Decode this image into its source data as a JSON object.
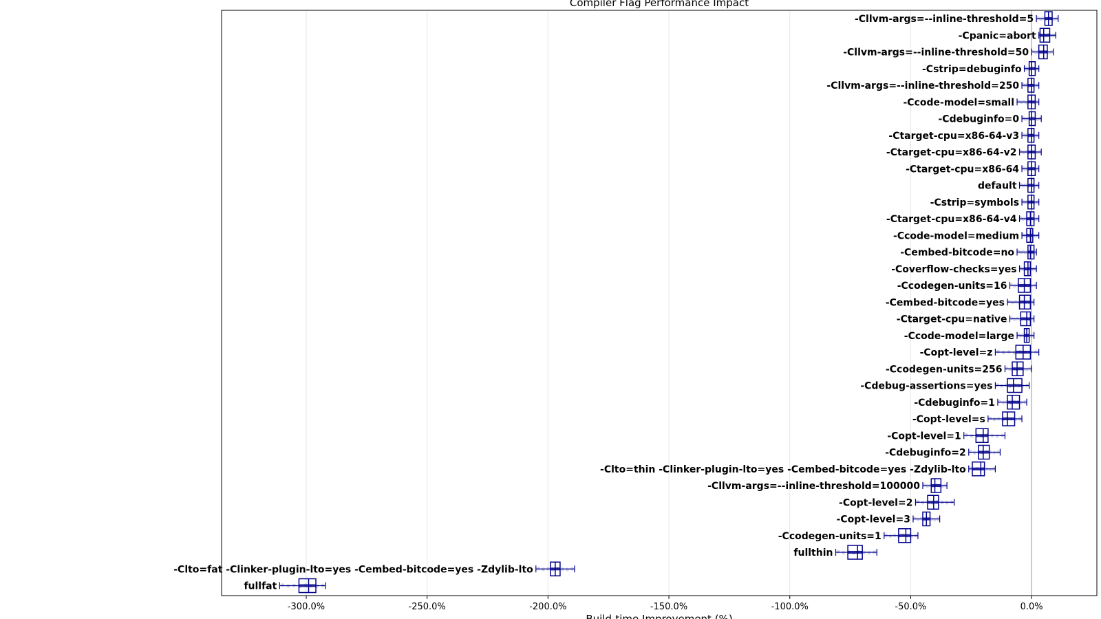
{
  "chart_data": {
    "type": "box",
    "title": "Compiler Flag Performance Impact",
    "xlabel": "Build-time Improvement (%)",
    "ylabel": "",
    "xlim": [
      -335,
      27
    ],
    "xticks": [
      -300,
      -250,
      -200,
      -150,
      -100,
      -50,
      0
    ],
    "xtick_labels": [
      "-300.0%",
      "-250.0%",
      "-200.0%",
      "-150.0%",
      "-100.0%",
      "-50.0%",
      "0.0%"
    ],
    "grid": "vertical",
    "reference_line": 0,
    "box_color": "#00008b",
    "categories": [
      {
        "label": "-Cllvm-args=--inline-threshold=5",
        "whisker_low": 2,
        "q1": 5.5,
        "median": 7,
        "q3": 8.5,
        "whisker_high": 11
      },
      {
        "label": "-Cpanic=abort",
        "whisker_low": 3,
        "q1": 3.5,
        "median": 5,
        "q3": 7.5,
        "whisker_high": 10
      },
      {
        "label": "-Cllvm-args=--inline-threshold=50",
        "whisker_low": 0,
        "q1": 3,
        "median": 5,
        "q3": 6.5,
        "whisker_high": 9
      },
      {
        "label": "-Cstrip=debuginfo",
        "whisker_low": -3,
        "q1": -1,
        "median": 0,
        "q3": 1.5,
        "whisker_high": 3
      },
      {
        "label": "-Cllvm-args=--inline-threshold=250",
        "whisker_low": -4,
        "q1": -1.5,
        "median": 0,
        "q3": 1,
        "whisker_high": 3
      },
      {
        "label": "-Ccode-model=small",
        "whisker_low": -6,
        "q1": -1.5,
        "median": 0,
        "q3": 1.5,
        "whisker_high": 3
      },
      {
        "label": "-Cdebuginfo=0",
        "whisker_low": -4,
        "q1": -1,
        "median": 0,
        "q3": 1.5,
        "whisker_high": 4
      },
      {
        "label": "-Ctarget-cpu=x86-64-v3",
        "whisker_low": -4,
        "q1": -1.5,
        "median": 0,
        "q3": 1,
        "whisker_high": 3
      },
      {
        "label": "-Ctarget-cpu=x86-64-v2",
        "whisker_low": -5,
        "q1": -1.5,
        "median": 0,
        "q3": 1.5,
        "whisker_high": 4
      },
      {
        "label": "-Ctarget-cpu=x86-64",
        "whisker_low": -4,
        "q1": -1.5,
        "median": 0,
        "q3": 1.5,
        "whisker_high": 3
      },
      {
        "label": "default",
        "whisker_low": -5,
        "q1": -1.5,
        "median": 0,
        "q3": 1,
        "whisker_high": 3
      },
      {
        "label": "-Cstrip=symbols",
        "whisker_low": -4,
        "q1": -1.5,
        "median": 0,
        "q3": 1,
        "whisker_high": 3
      },
      {
        "label": "-Ctarget-cpu=x86-64-v4",
        "whisker_low": -5,
        "q1": -2,
        "median": -0.5,
        "q3": 1,
        "whisker_high": 3
      },
      {
        "label": "-Ccode-model=medium",
        "whisker_low": -4,
        "q1": -2,
        "median": -0.5,
        "q3": 0.5,
        "whisker_high": 3
      },
      {
        "label": "-Cembed-bitcode=no",
        "whisker_low": -6,
        "q1": -1.5,
        "median": -0.5,
        "q3": 1,
        "whisker_high": 2
      },
      {
        "label": "-Coverflow-checks=yes",
        "whisker_low": -5,
        "q1": -3,
        "median": -1.5,
        "q3": -0.5,
        "whisker_high": 2
      },
      {
        "label": "-Ccodegen-units=16",
        "whisker_low": -9,
        "q1": -5.5,
        "median": -3,
        "q3": -0.5,
        "whisker_high": 2
      },
      {
        "label": "-Cembed-bitcode=yes",
        "whisker_low": -10,
        "q1": -5,
        "median": -3,
        "q3": -0.5,
        "whisker_high": 1
      },
      {
        "label": "-Ctarget-cpu=native",
        "whisker_low": -9,
        "q1": -4.5,
        "median": -2,
        "q3": -0.5,
        "whisker_high": 1
      },
      {
        "label": "-Ccode-model=large",
        "whisker_low": -6,
        "q1": -3,
        "median": -2,
        "q3": -1,
        "whisker_high": 1
      },
      {
        "label": "-Copt-level=z",
        "whisker_low": -15,
        "q1": -6.5,
        "median": -3.5,
        "q3": -0.5,
        "whisker_high": 3
      },
      {
        "label": "-Ccodegen-units=256",
        "whisker_low": -11,
        "q1": -8,
        "median": -6,
        "q3": -3.5,
        "whisker_high": 0
      },
      {
        "label": "-Cdebug-assertions=yes",
        "whisker_low": -15,
        "q1": -10,
        "median": -7.5,
        "q3": -4,
        "whisker_high": -1
      },
      {
        "label": "-Cdebuginfo=1",
        "whisker_low": -14,
        "q1": -10,
        "median": -8,
        "q3": -5,
        "whisker_high": -2
      },
      {
        "label": "-Copt-level=s",
        "whisker_low": -18,
        "q1": -12,
        "median": -10,
        "q3": -7,
        "whisker_high": -4
      },
      {
        "label": "-Copt-level=1",
        "whisker_low": -28,
        "q1": -23,
        "median": -20,
        "q3": -18,
        "whisker_high": -11
      },
      {
        "label": "-Cdebuginfo=2",
        "whisker_low": -26,
        "q1": -22,
        "median": -20,
        "q3": -17.5,
        "whisker_high": -13
      },
      {
        "label": "-Clto=thin -Clinker-plugin-lto=yes -Cembed-bitcode=yes -Zdylib-lto",
        "whisker_low": -26,
        "q1": -24.5,
        "median": -21,
        "q3": -19.5,
        "whisker_high": -15
      },
      {
        "label": "-Cllvm-args=--inline-threshold=100000",
        "whisker_low": -45,
        "q1": -41.5,
        "median": -40,
        "q3": -37.5,
        "whisker_high": -35
      },
      {
        "label": "-Copt-level=2",
        "whisker_low": -48,
        "q1": -43,
        "median": -40.5,
        "q3": -38.5,
        "whisker_high": -32
      },
      {
        "label": "-Copt-level=3",
        "whisker_low": -49,
        "q1": -45,
        "median": -43.5,
        "q3": -42,
        "whisker_high": -38
      },
      {
        "label": "-Ccodegen-units=1",
        "whisker_low": -61,
        "q1": -55,
        "median": -52,
        "q3": -50,
        "whisker_high": -47
      },
      {
        "label": "fullthin",
        "whisker_low": -81,
        "q1": -76,
        "median": -72,
        "q3": -70,
        "whisker_high": -64
      },
      {
        "label": "-Clto=fat -Clinker-plugin-lto=yes -Cembed-bitcode=yes -Zdylib-lto",
        "whisker_low": -205,
        "q1": -199,
        "median": -197,
        "q3": -195,
        "whisker_high": -189
      },
      {
        "label": "fullfat",
        "whisker_low": -311,
        "q1": -303,
        "median": -299,
        "q3": -296,
        "whisker_high": -292
      }
    ]
  }
}
